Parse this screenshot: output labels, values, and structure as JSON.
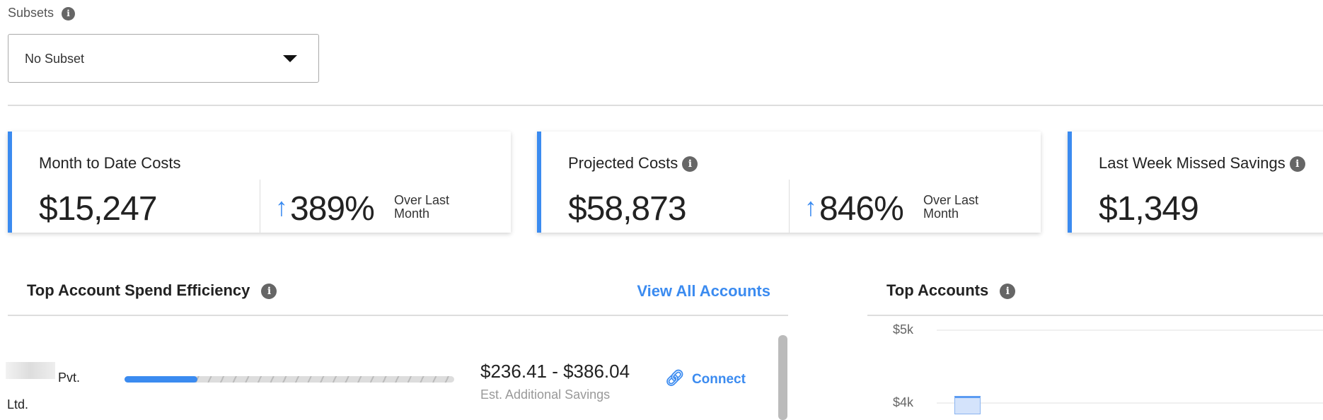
{
  "subsets": {
    "label": "Subsets",
    "selected": "No Subset"
  },
  "cards": [
    {
      "title": "Month to Date Costs",
      "value": "$15,247",
      "change": "389%",
      "change_label": "Over Last Month",
      "direction": "up"
    },
    {
      "title": "Projected Costs",
      "value": "$58,873",
      "change": "846%",
      "change_label": "Over Last Month",
      "direction": "up"
    },
    {
      "title": "Last Week Missed Savings",
      "value": "$1,349"
    }
  ],
  "efficiency": {
    "title": "Top Account Spend Efficiency",
    "view_all": "View All Accounts",
    "rows": [
      {
        "name": "Pvt. Ltd.",
        "progress_pct": 22,
        "range": "$236.41 - $386.04",
        "sub": "Est. Additional Savings",
        "action": "Connect"
      }
    ]
  },
  "top_accounts": {
    "title": "Top Accounts"
  },
  "chart_data": {
    "type": "bar",
    "yticks": [
      "$5k",
      "$4k"
    ],
    "values": [
      4100
    ],
    "grid": true
  },
  "colors": {
    "accent": "#3b8bf0",
    "bar": "#d4e3fb"
  }
}
